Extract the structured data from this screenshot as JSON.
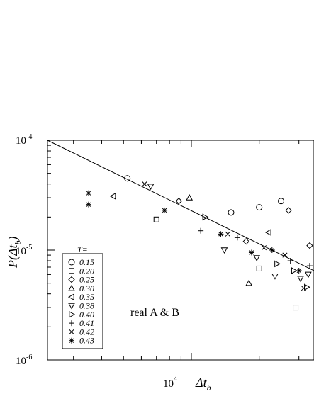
{
  "chart_data": {
    "type": "scatter",
    "title": "",
    "xscale": "log",
    "yscale": "log",
    "xlim": [
      2300,
      35000
    ],
    "ylim": [
      1e-06,
      0.0001
    ],
    "grid": false,
    "x_tick_label": "10",
    "x_tick_exp": "4",
    "x_tick_value": 10000,
    "y_ticks": [
      {
        "value": 0.0001,
        "base": "10",
        "exp": "-4"
      },
      {
        "value": 1e-05,
        "base": "10",
        "exp": "-5"
      },
      {
        "value": 1e-06,
        "base": "10",
        "exp": "-6"
      }
    ],
    "xlabel": {
      "main": "Δt",
      "sub": "b"
    },
    "ylabel": {
      "main": "P(Δt",
      "sub": "b",
      "close": ")"
    },
    "legend": {
      "title": "T=",
      "position": "bottom-left",
      "entries": [
        {
          "label": "0.15",
          "marker": "circle",
          "italic": true
        },
        {
          "label": "0.20",
          "marker": "square",
          "italic": true
        },
        {
          "label": "0.25",
          "marker": "diamond",
          "italic": false
        },
        {
          "label": "0.30",
          "marker": "triangle-up",
          "italic": true
        },
        {
          "label": "0.35",
          "marker": "triangle-left",
          "italic": false
        },
        {
          "label": "0.38",
          "marker": "triangle-down",
          "italic": true
        },
        {
          "label": "0.40",
          "marker": "triangle-right",
          "italic": false
        },
        {
          "label": "0.41",
          "marker": "plus",
          "italic": true
        },
        {
          "label": "0.42",
          "marker": "cross",
          "italic": true
        },
        {
          "label": "0.43",
          "marker": "asterisk",
          "italic": true
        }
      ]
    },
    "annotation": "real A & B",
    "fit_line": {
      "x": [
        2300,
        35000
      ],
      "y": [
        0.0001,
        6.5e-06
      ]
    },
    "series": [
      {
        "name": "0.15",
        "marker": "circle",
        "points": [
          [
            5200,
            4.5e-05
          ],
          [
            15000,
            2.2e-05
          ],
          [
            20000,
            2.45e-05
          ],
          [
            25000,
            2.8e-05
          ]
        ]
      },
      {
        "name": "0.20",
        "marker": "square",
        "points": [
          [
            7000,
            1.9e-05
          ],
          [
            20000,
            6.8e-06
          ],
          [
            29000,
            3e-06
          ]
        ]
      },
      {
        "name": "0.25",
        "marker": "diamond",
        "points": [
          [
            8800,
            2.8e-05
          ],
          [
            17500,
            1.2e-05
          ],
          [
            27000,
            2.3e-05
          ],
          [
            33500,
            1.1e-05
          ]
        ]
      },
      {
        "name": "0.30",
        "marker": "triangle-up",
        "points": [
          [
            9800,
            3e-05
          ],
          [
            18000,
            5e-06
          ]
        ]
      },
      {
        "name": "0.35",
        "marker": "triangle-left",
        "points": [
          [
            4500,
            3.1e-05
          ],
          [
            22000,
            1.45e-05
          ]
        ]
      },
      {
        "name": "0.38",
        "marker": "triangle-down",
        "points": [
          [
            6600,
            3.8e-05
          ],
          [
            14000,
            1e-05
          ],
          [
            19500,
            8.5e-06
          ],
          [
            23500,
            5.8e-06
          ],
          [
            30500,
            5.5e-06
          ],
          [
            33000,
            6e-06
          ]
        ]
      },
      {
        "name": "0.40",
        "marker": "triangle-right",
        "points": [
          [
            11500,
            2e-05
          ],
          [
            24000,
            7.5e-06
          ],
          [
            28500,
            6.5e-06
          ],
          [
            32500,
            4.6e-06
          ]
        ]
      },
      {
        "name": "0.41",
        "marker": "plus",
        "points": [
          [
            11000,
            1.5e-05
          ],
          [
            16000,
            1.3e-05
          ],
          [
            27500,
            8e-06
          ],
          [
            33500,
            7.2e-06
          ]
        ]
      },
      {
        "name": "0.42",
        "marker": "cross",
        "points": [
          [
            6200,
            4e-05
          ],
          [
            14500,
            1.4e-05
          ],
          [
            21000,
            1.05e-05
          ],
          [
            26000,
            9e-06
          ],
          [
            31500,
            4.5e-06
          ]
        ]
      },
      {
        "name": "0.43",
        "marker": "asterisk",
        "points": [
          [
            3500,
            3.3e-05
          ],
          [
            3500,
            2.6e-05
          ],
          [
            7600,
            2.3e-05
          ],
          [
            13500,
            1.4e-05
          ],
          [
            18500,
            9.5e-06
          ],
          [
            22800,
            1e-05
          ],
          [
            30000,
            6.5e-06
          ]
        ]
      }
    ]
  }
}
